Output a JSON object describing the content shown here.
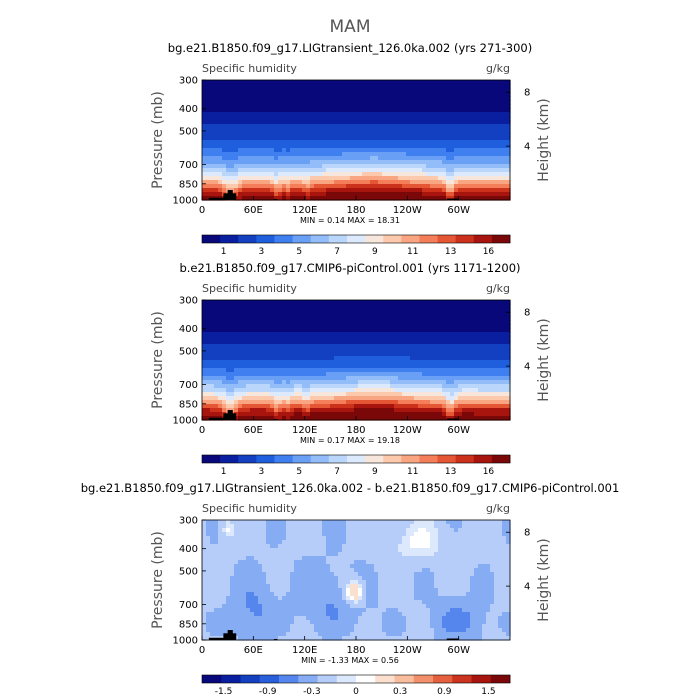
{
  "suptitle": "MAM",
  "chart_data": [
    {
      "type": "heatmap",
      "title": "bg.e21.B1850.f09_g17.LIGtransient_126.0ka.002 (yrs 271-300)",
      "left_label": "Specific humidity",
      "right_label": "g/kg",
      "ylabel": "Pressure (mb)",
      "ylabel_right": "Height (km)",
      "x_ticks": [
        "0",
        "60E",
        "120E",
        "180",
        "120W",
        "60W"
      ],
      "y_ticks": [
        "300",
        "400",
        "500",
        "700",
        "850",
        "1000"
      ],
      "y2_ticks": [
        "8",
        "4"
      ],
      "stats": "MIN =    0.14   MAX =   18.31",
      "min": 0.14,
      "max": 18.31,
      "colorbar_labels": [
        "1",
        "3",
        "5",
        "7",
        "9",
        "11",
        "13",
        "16"
      ],
      "levels": [
        0.5,
        1,
        2,
        3,
        4,
        5,
        6,
        7,
        8,
        9,
        10,
        11,
        12,
        13,
        14,
        16
      ],
      "colors": [
        "#08087a",
        "#0a1fa0",
        "#1240c0",
        "#1f5fdd",
        "#3f7ff0",
        "#6a9ff6",
        "#93bdf8",
        "#bad6fb",
        "#dde9fd",
        "#f7e6dc",
        "#fcc9ad",
        "#f9a582",
        "#f47e5a",
        "#e55634",
        "#cc311c",
        "#a8150e",
        "#7a0808"
      ]
    },
    {
      "type": "heatmap",
      "title": "b.e21.B1850.f09_g17.CMIP6-piControl.001 (yrs 1171-1200)",
      "left_label": "Specific humidity",
      "right_label": "g/kg",
      "ylabel": "Pressure (mb)",
      "ylabel_right": "Height (km)",
      "x_ticks": [
        "0",
        "60E",
        "120E",
        "180",
        "120W",
        "60W"
      ],
      "y_ticks": [
        "300",
        "400",
        "500",
        "700",
        "850",
        "1000"
      ],
      "y2_ticks": [
        "8",
        "4"
      ],
      "stats": "MIN =    0.17   MAX =   19.18",
      "min": 0.17,
      "max": 19.18,
      "colorbar_labels": [
        "1",
        "3",
        "5",
        "7",
        "9",
        "11",
        "13",
        "16"
      ],
      "levels": [
        0.5,
        1,
        2,
        3,
        4,
        5,
        6,
        7,
        8,
        9,
        10,
        11,
        12,
        13,
        14,
        16
      ],
      "colors": [
        "#08087a",
        "#0a1fa0",
        "#1240c0",
        "#1f5fdd",
        "#3f7ff0",
        "#6a9ff6",
        "#93bdf8",
        "#bad6fb",
        "#dde9fd",
        "#f7e6dc",
        "#fcc9ad",
        "#f9a582",
        "#f47e5a",
        "#e55634",
        "#cc311c",
        "#a8150e",
        "#7a0808"
      ]
    },
    {
      "type": "heatmap",
      "title": "bg.e21.B1850.f09_g17.LIGtransient_126.0ka.002 - b.e21.B1850.f09_g17.CMIP6-piControl.001",
      "left_label": "Specific humidity",
      "right_label": "g/kg",
      "ylabel": "Pressure (mb)",
      "ylabel_right": "Height (km)",
      "x_ticks": [
        "0",
        "60E",
        "120E",
        "180",
        "120W",
        "60W"
      ],
      "y_ticks": [
        "300",
        "400",
        "500",
        "700",
        "850",
        "1000"
      ],
      "y2_ticks": [
        "8",
        "4"
      ],
      "stats": "MIN =   -1.33   MAX =    0.56",
      "min": -1.33,
      "max": 0.56,
      "colorbar_labels": [
        "-1.5",
        "-0.9",
        "-0.3",
        "0",
        "0.3",
        "0.9",
        "1.5"
      ],
      "levels": [
        -1.8,
        -1.5,
        -1.2,
        -0.9,
        -0.6,
        -0.3,
        -0.1,
        0,
        0.1,
        0.3,
        0.6,
        0.9,
        1.2,
        1.5,
        1.8
      ],
      "colors": [
        "#08087a",
        "#0a1fa0",
        "#1240c0",
        "#2a5fdc",
        "#5586ee",
        "#86acf4",
        "#b5cdf8",
        "#dce8fc",
        "#ffffff",
        "#fbe0cf",
        "#f7bd9d",
        "#f1906a",
        "#e4603e",
        "#cc341f",
        "#a8150e",
        "#7a0808"
      ]
    }
  ]
}
